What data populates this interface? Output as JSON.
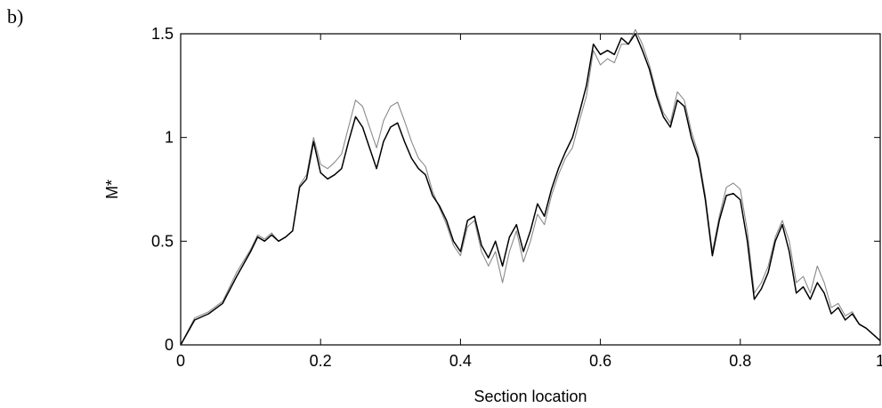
{
  "panel_label": "b)",
  "chart_data": {
    "type": "line",
    "title": "",
    "xlabel": "Section location",
    "ylabel": "M*",
    "xlim": [
      0,
      1
    ],
    "ylim": [
      0,
      1.5
    ],
    "xticks": [
      0,
      0.2,
      0.4,
      0.6,
      0.8,
      1
    ],
    "xtick_labels": [
      "0",
      "0.2",
      "0.4",
      "0.6",
      "0.8",
      "1"
    ],
    "yticks": [
      0,
      0.5,
      1,
      1.5
    ],
    "ytick_labels": [
      "0",
      "0.5",
      "1",
      "1.5"
    ],
    "grid": false,
    "series": [
      {
        "color": "#000000",
        "x": [
          0,
          0.02,
          0.04,
          0.06,
          0.08,
          0.1,
          0.11,
          0.12,
          0.13,
          0.14,
          0.15,
          0.16,
          0.17,
          0.18,
          0.19,
          0.2,
          0.21,
          0.22,
          0.23,
          0.24,
          0.25,
          0.26,
          0.27,
          0.28,
          0.29,
          0.3,
          0.31,
          0.32,
          0.33,
          0.34,
          0.35,
          0.36,
          0.37,
          0.38,
          0.39,
          0.4,
          0.41,
          0.42,
          0.43,
          0.44,
          0.45,
          0.46,
          0.47,
          0.48,
          0.49,
          0.5,
          0.51,
          0.52,
          0.53,
          0.54,
          0.55,
          0.56,
          0.57,
          0.58,
          0.59,
          0.6,
          0.61,
          0.62,
          0.63,
          0.64,
          0.65,
          0.66,
          0.67,
          0.68,
          0.69,
          0.7,
          0.71,
          0.72,
          0.73,
          0.74,
          0.75,
          0.76,
          0.77,
          0.78,
          0.79,
          0.8,
          0.81,
          0.82,
          0.83,
          0.84,
          0.85,
          0.86,
          0.87,
          0.88,
          0.89,
          0.9,
          0.91,
          0.92,
          0.93,
          0.94,
          0.95,
          0.96,
          0.97,
          0.98,
          1.0
        ],
        "y": [
          0,
          0.12,
          0.15,
          0.2,
          0.33,
          0.45,
          0.52,
          0.5,
          0.53,
          0.5,
          0.52,
          0.55,
          0.76,
          0.8,
          0.98,
          0.83,
          0.8,
          0.82,
          0.85,
          0.98,
          1.1,
          1.05,
          0.95,
          0.85,
          0.98,
          1.05,
          1.07,
          0.98,
          0.9,
          0.85,
          0.82,
          0.72,
          0.67,
          0.6,
          0.5,
          0.45,
          0.6,
          0.62,
          0.48,
          0.42,
          0.5,
          0.38,
          0.52,
          0.58,
          0.45,
          0.55,
          0.68,
          0.62,
          0.75,
          0.85,
          0.93,
          1.0,
          1.12,
          1.25,
          1.45,
          1.4,
          1.42,
          1.4,
          1.48,
          1.45,
          1.5,
          1.42,
          1.33,
          1.2,
          1.1,
          1.05,
          1.18,
          1.15,
          1.0,
          0.9,
          0.7,
          0.43,
          0.6,
          0.72,
          0.73,
          0.7,
          0.5,
          0.22,
          0.27,
          0.35,
          0.5,
          0.58,
          0.45,
          0.25,
          0.28,
          0.22,
          0.3,
          0.25,
          0.15,
          0.18,
          0.12,
          0.15,
          0.1,
          0.08,
          0.02
        ]
      },
      {
        "color": "#8a8a8a",
        "x": [
          0,
          0.02,
          0.04,
          0.06,
          0.08,
          0.1,
          0.11,
          0.12,
          0.13,
          0.14,
          0.15,
          0.16,
          0.17,
          0.18,
          0.19,
          0.2,
          0.21,
          0.22,
          0.23,
          0.24,
          0.25,
          0.26,
          0.27,
          0.28,
          0.29,
          0.3,
          0.31,
          0.32,
          0.33,
          0.34,
          0.35,
          0.36,
          0.37,
          0.38,
          0.39,
          0.4,
          0.41,
          0.42,
          0.43,
          0.44,
          0.45,
          0.46,
          0.47,
          0.48,
          0.49,
          0.5,
          0.51,
          0.52,
          0.53,
          0.54,
          0.55,
          0.56,
          0.57,
          0.58,
          0.59,
          0.6,
          0.61,
          0.62,
          0.63,
          0.64,
          0.65,
          0.66,
          0.67,
          0.68,
          0.69,
          0.7,
          0.71,
          0.72,
          0.73,
          0.74,
          0.75,
          0.76,
          0.77,
          0.78,
          0.79,
          0.8,
          0.81,
          0.82,
          0.83,
          0.84,
          0.85,
          0.86,
          0.87,
          0.88,
          0.89,
          0.9,
          0.91,
          0.92,
          0.93,
          0.94,
          0.95,
          0.96,
          0.97,
          0.98,
          1.0
        ],
        "y": [
          0,
          0.13,
          0.16,
          0.21,
          0.35,
          0.46,
          0.53,
          0.51,
          0.54,
          0.5,
          0.52,
          0.55,
          0.77,
          0.82,
          1.0,
          0.87,
          0.85,
          0.88,
          0.92,
          1.05,
          1.18,
          1.15,
          1.05,
          0.95,
          1.08,
          1.15,
          1.17,
          1.08,
          0.98,
          0.9,
          0.86,
          0.74,
          0.66,
          0.58,
          0.48,
          0.43,
          0.57,
          0.6,
          0.45,
          0.38,
          0.45,
          0.3,
          0.45,
          0.55,
          0.4,
          0.5,
          0.63,
          0.58,
          0.72,
          0.82,
          0.9,
          0.95,
          1.08,
          1.2,
          1.42,
          1.35,
          1.38,
          1.36,
          1.45,
          1.45,
          1.52,
          1.45,
          1.35,
          1.22,
          1.12,
          1.07,
          1.22,
          1.18,
          1.03,
          0.92,
          0.72,
          0.45,
          0.62,
          0.76,
          0.78,
          0.75,
          0.55,
          0.25,
          0.3,
          0.38,
          0.52,
          0.6,
          0.5,
          0.3,
          0.33,
          0.25,
          0.38,
          0.3,
          0.18,
          0.2,
          0.14,
          0.16,
          0.1,
          0.08,
          0.02
        ]
      }
    ]
  }
}
